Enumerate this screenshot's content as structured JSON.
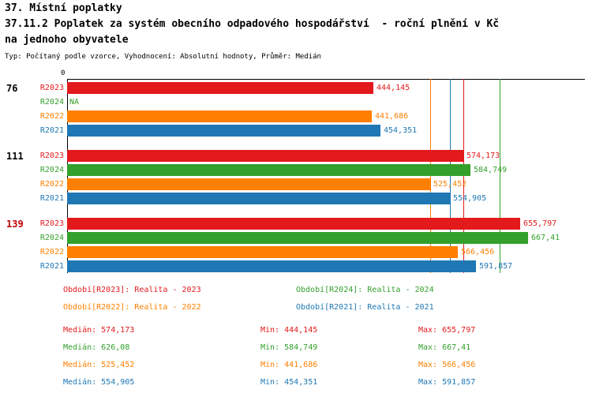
{
  "header": {
    "title": "37. Místní poplatky",
    "subtitle_line1": "37.11.2 Poplatek za systém obecního odpadového hospodářství  - roční plnění v Kč",
    "subtitle_line2": "na jednoho obyvatele",
    "meta": "Typ: Počítaný podle vzorce, Vyhodnocení: Absolutní hodnoty, Průměr: Medián"
  },
  "colors": {
    "R2023": "#e31a1c",
    "R2024": "#33a02c",
    "R2022": "#ff7f00",
    "R2021": "#1f78b4",
    "axis": "#000000"
  },
  "chart_data": {
    "type": "bar",
    "orientation": "horizontal",
    "title": "37.11.2 Poplatek za systém obecního odpadového hospodářství - roční plnění v Kč na jednoho obyvatele",
    "xlim": [
      0,
      750
    ],
    "origin_tick_label": "0",
    "grid": false,
    "row_order": [
      "R2023",
      "R2024",
      "R2022",
      "R2021"
    ],
    "groups": [
      {
        "label": "76",
        "label_color": "#000000",
        "bars": [
          {
            "series": "R2023",
            "value": 444.145,
            "display": "444,145"
          },
          {
            "series": "R2024",
            "value": null,
            "display": "NA"
          },
          {
            "series": "R2022",
            "value": 441.686,
            "display": "441,686"
          },
          {
            "series": "R2021",
            "value": 454.351,
            "display": "454,351"
          }
        ]
      },
      {
        "label": "111",
        "label_color": "#000000",
        "bars": [
          {
            "series": "R2023",
            "value": 574.173,
            "display": "574,173"
          },
          {
            "series": "R2024",
            "value": 584.749,
            "display": "584,749"
          },
          {
            "series": "R2022",
            "value": 525.452,
            "display": "525,452"
          },
          {
            "series": "R2021",
            "value": 554.905,
            "display": "554,905"
          }
        ]
      },
      {
        "label": "139",
        "label_color": "#c00000",
        "bars": [
          {
            "series": "R2023",
            "value": 655.797,
            "display": "655,797"
          },
          {
            "series": "R2024",
            "value": 667.41,
            "display": "667,41"
          },
          {
            "series": "R2022",
            "value": 566.456,
            "display": "566,456"
          },
          {
            "series": "R2021",
            "value": 591.857,
            "display": "591,857"
          }
        ]
      }
    ],
    "median_lines": [
      {
        "series": "R2022",
        "value": 525.452
      },
      {
        "series": "R2021",
        "value": 554.905
      },
      {
        "series": "R2023",
        "value": 574.173
      },
      {
        "series": "R2024",
        "value": 626.08
      }
    ]
  },
  "legend": [
    {
      "series": "R2023",
      "label": "Období[R2023]: Realita - 2023"
    },
    {
      "series": "R2024",
      "label": "Období[R2024]: Realita - 2024"
    },
    {
      "series": "R2022",
      "label": "Období[R2022]: Realita - 2022"
    },
    {
      "series": "R2021",
      "label": "Období[R2021]: Realita - 2021"
    }
  ],
  "stats": [
    {
      "series": "R2023",
      "median": "Medián: 574,173",
      "min": "Min: 444,145",
      "max": "Max: 655,797"
    },
    {
      "series": "R2024",
      "median": "Medián: 626,08",
      "min": "Min: 584,749",
      "max": "Max: 667,41"
    },
    {
      "series": "R2022",
      "median": "Medián: 525,452",
      "min": "Min: 441,686",
      "max": "Max: 566,456"
    },
    {
      "series": "R2021",
      "median": "Medián: 554,905",
      "min": "Min: 454,351",
      "max": "Max: 591,857"
    }
  ]
}
